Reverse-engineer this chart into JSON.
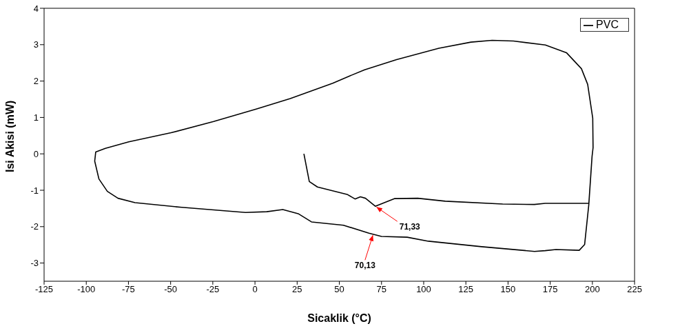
{
  "chart_data": {
    "type": "line",
    "xlabel": "Sicaklik (°C)",
    "ylabel": "Isi Akisi (mW)",
    "xlim": [
      -125,
      225
    ],
    "xticks": [
      -125,
      -100,
      -75,
      -50,
      -25,
      0,
      25,
      50,
      75,
      100,
      125,
      150,
      175,
      200,
      225
    ],
    "ylim": [
      -3.5,
      4
    ],
    "yticks": [
      -3,
      -2,
      -1,
      0,
      1,
      2,
      3,
      4
    ],
    "legend": "top right",
    "marker": "none",
    "line_style": "solid",
    "series": [
      {
        "name": "PVC",
        "color": "#000000",
        "x": [
          29,
          32.2,
          37,
          54.9,
          59.3,
          62.5,
          65.5,
          71.3,
          82.6,
          96.5,
          112.8,
          146.8,
          165.6,
          172,
          197.9,
          199.8,
          200.4,
          200.2,
          197.2,
          193.5,
          184.6,
          172.1,
          153.2,
          140.6,
          128,
          109,
          83.9,
          65,
          56.1,
          46.1,
          20.9,
          0.7,
          -24.5,
          -49.7,
          -74.8,
          -88.7,
          -94.4,
          -95,
          -92.5,
          -87.5,
          -81.2,
          -71.1,
          -43.4,
          -5.6,
          7,
          16.5,
          25.9,
          33.5,
          52.4,
          67.5,
          75,
          90.2,
          102.8,
          134.3,
          165.7,
          172,
          178.4,
          192.2,
          195.4,
          197.9,
          199.8
        ],
        "values": [
          0,
          -0.76,
          -0.91,
          -1.12,
          -1.24,
          -1.18,
          -1.22,
          -1.44,
          -1.23,
          -1.22,
          -1.3,
          -1.38,
          -1.39,
          -1.36,
          -1.36,
          -0.07,
          0.17,
          0.98,
          1.91,
          2.34,
          2.78,
          2.99,
          3.1,
          3.12,
          3.07,
          2.9,
          2.59,
          2.31,
          2.14,
          1.94,
          1.52,
          1.23,
          0.89,
          0.58,
          0.33,
          0.15,
          0.05,
          -0.2,
          -0.69,
          -1.03,
          -1.22,
          -1.34,
          -1.47,
          -1.61,
          -1.59,
          -1.53,
          -1.65,
          -1.87,
          -1.96,
          -2.18,
          -2.27,
          -2.29,
          -2.4,
          -2.55,
          -2.68,
          -2.66,
          -2.63,
          -2.65,
          -2.49,
          -1.38,
          -0.07
        ]
      }
    ],
    "annotations": [
      {
        "text": "71,33",
        "x": 71.33,
        "y": -1.44
      },
      {
        "text": "70,13",
        "x": 70.13,
        "y": -2.2
      }
    ]
  }
}
